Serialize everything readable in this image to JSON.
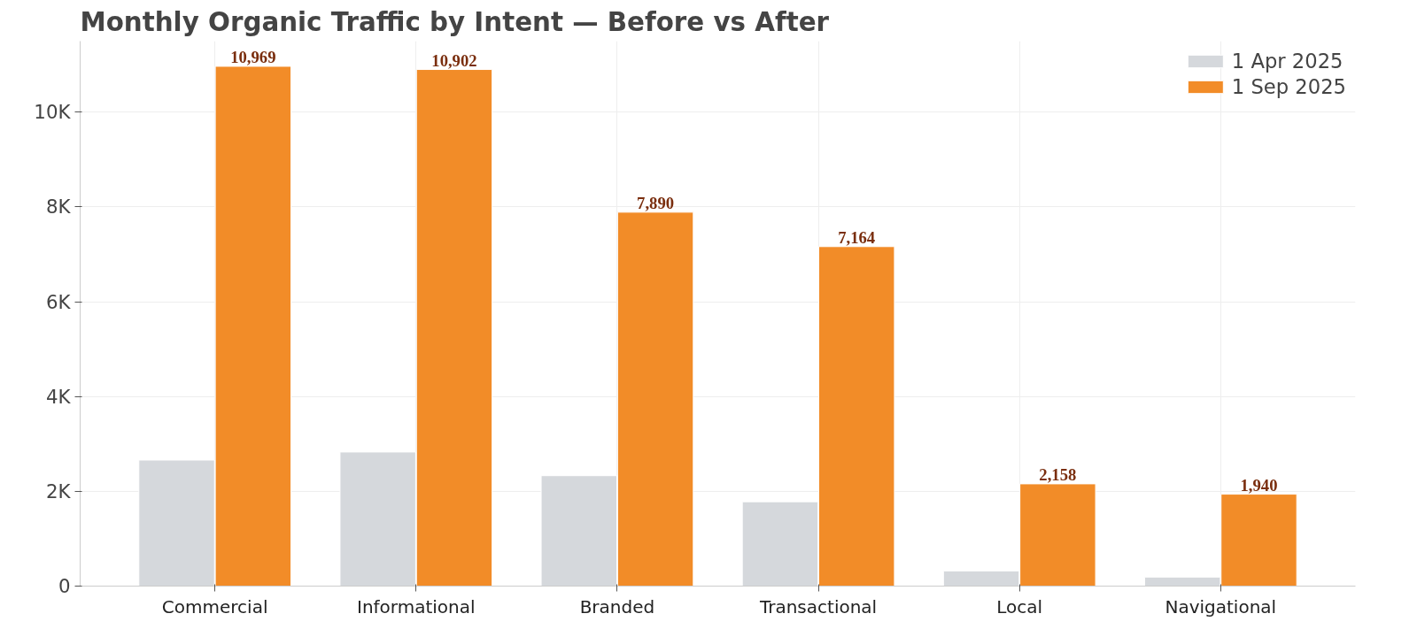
{
  "chart_data": {
    "type": "bar",
    "title": "Monthly Organic Traffic by Intent — Before vs After",
    "categories": [
      "Commercial",
      "Informational",
      "Branded",
      "Transactional",
      "Local",
      "Navigational"
    ],
    "series": [
      {
        "name": "1 Apr 2025",
        "color": "#d5d8dc",
        "values": [
          2660,
          2830,
          2330,
          1780,
          320,
          190
        ]
      },
      {
        "name": "1 Sep 2025",
        "color": "#f28c28",
        "values": [
          10969,
          10902,
          7890,
          7164,
          2158,
          1940
        ],
        "value_labels": [
          "10,969",
          "10,902",
          "7,890",
          "7,164",
          "2,158",
          "1,940"
        ]
      }
    ],
    "ylim": [
      0,
      11500
    ],
    "yticks": [
      0,
      {
        "value": 2000,
        "label": "2K"
      },
      {
        "value": 4000,
        "label": "4K"
      },
      {
        "value": 6000,
        "label": "6K"
      },
      {
        "value": 8000,
        "label": "8K"
      },
      {
        "value": 10000,
        "label": "10K"
      }
    ],
    "grid": true,
    "legend": "top right"
  }
}
